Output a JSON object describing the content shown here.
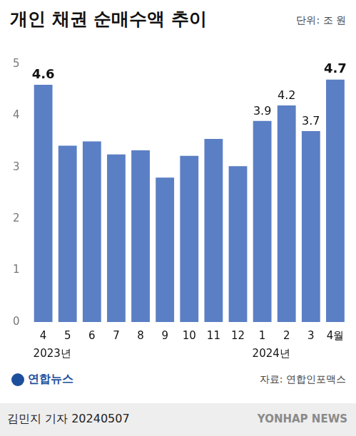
{
  "chart_data": {
    "type": "bar",
    "title": "개인 채권 순매수액 추이",
    "subtitle": "단위: 조 원",
    "categories": [
      "4",
      "5",
      "6",
      "7",
      "8",
      "9",
      "10",
      "11",
      "12",
      "1",
      "2",
      "3",
      "4월"
    ],
    "values": [
      4.6,
      3.42,
      3.5,
      3.25,
      3.33,
      2.8,
      3.22,
      3.55,
      3.02,
      3.9,
      4.2,
      3.7,
      4.7
    ],
    "value_labels": [
      "4.6",
      null,
      null,
      null,
      null,
      null,
      null,
      null,
      null,
      "3.9",
      "4.2",
      "3.7",
      "4.7"
    ],
    "color": "#5b7fc4",
    "ylim": [
      0,
      5
    ],
    "yticks": [
      0,
      1,
      2,
      3,
      4,
      5
    ],
    "grid": false,
    "annotations": [
      "2023년",
      "2024년"
    ],
    "source": "자료: 연합인포맥스",
    "logo": "연합뉴스",
    "byline": "김민지 기자 20240507",
    "watermark": "YONHAP NEWS"
  }
}
